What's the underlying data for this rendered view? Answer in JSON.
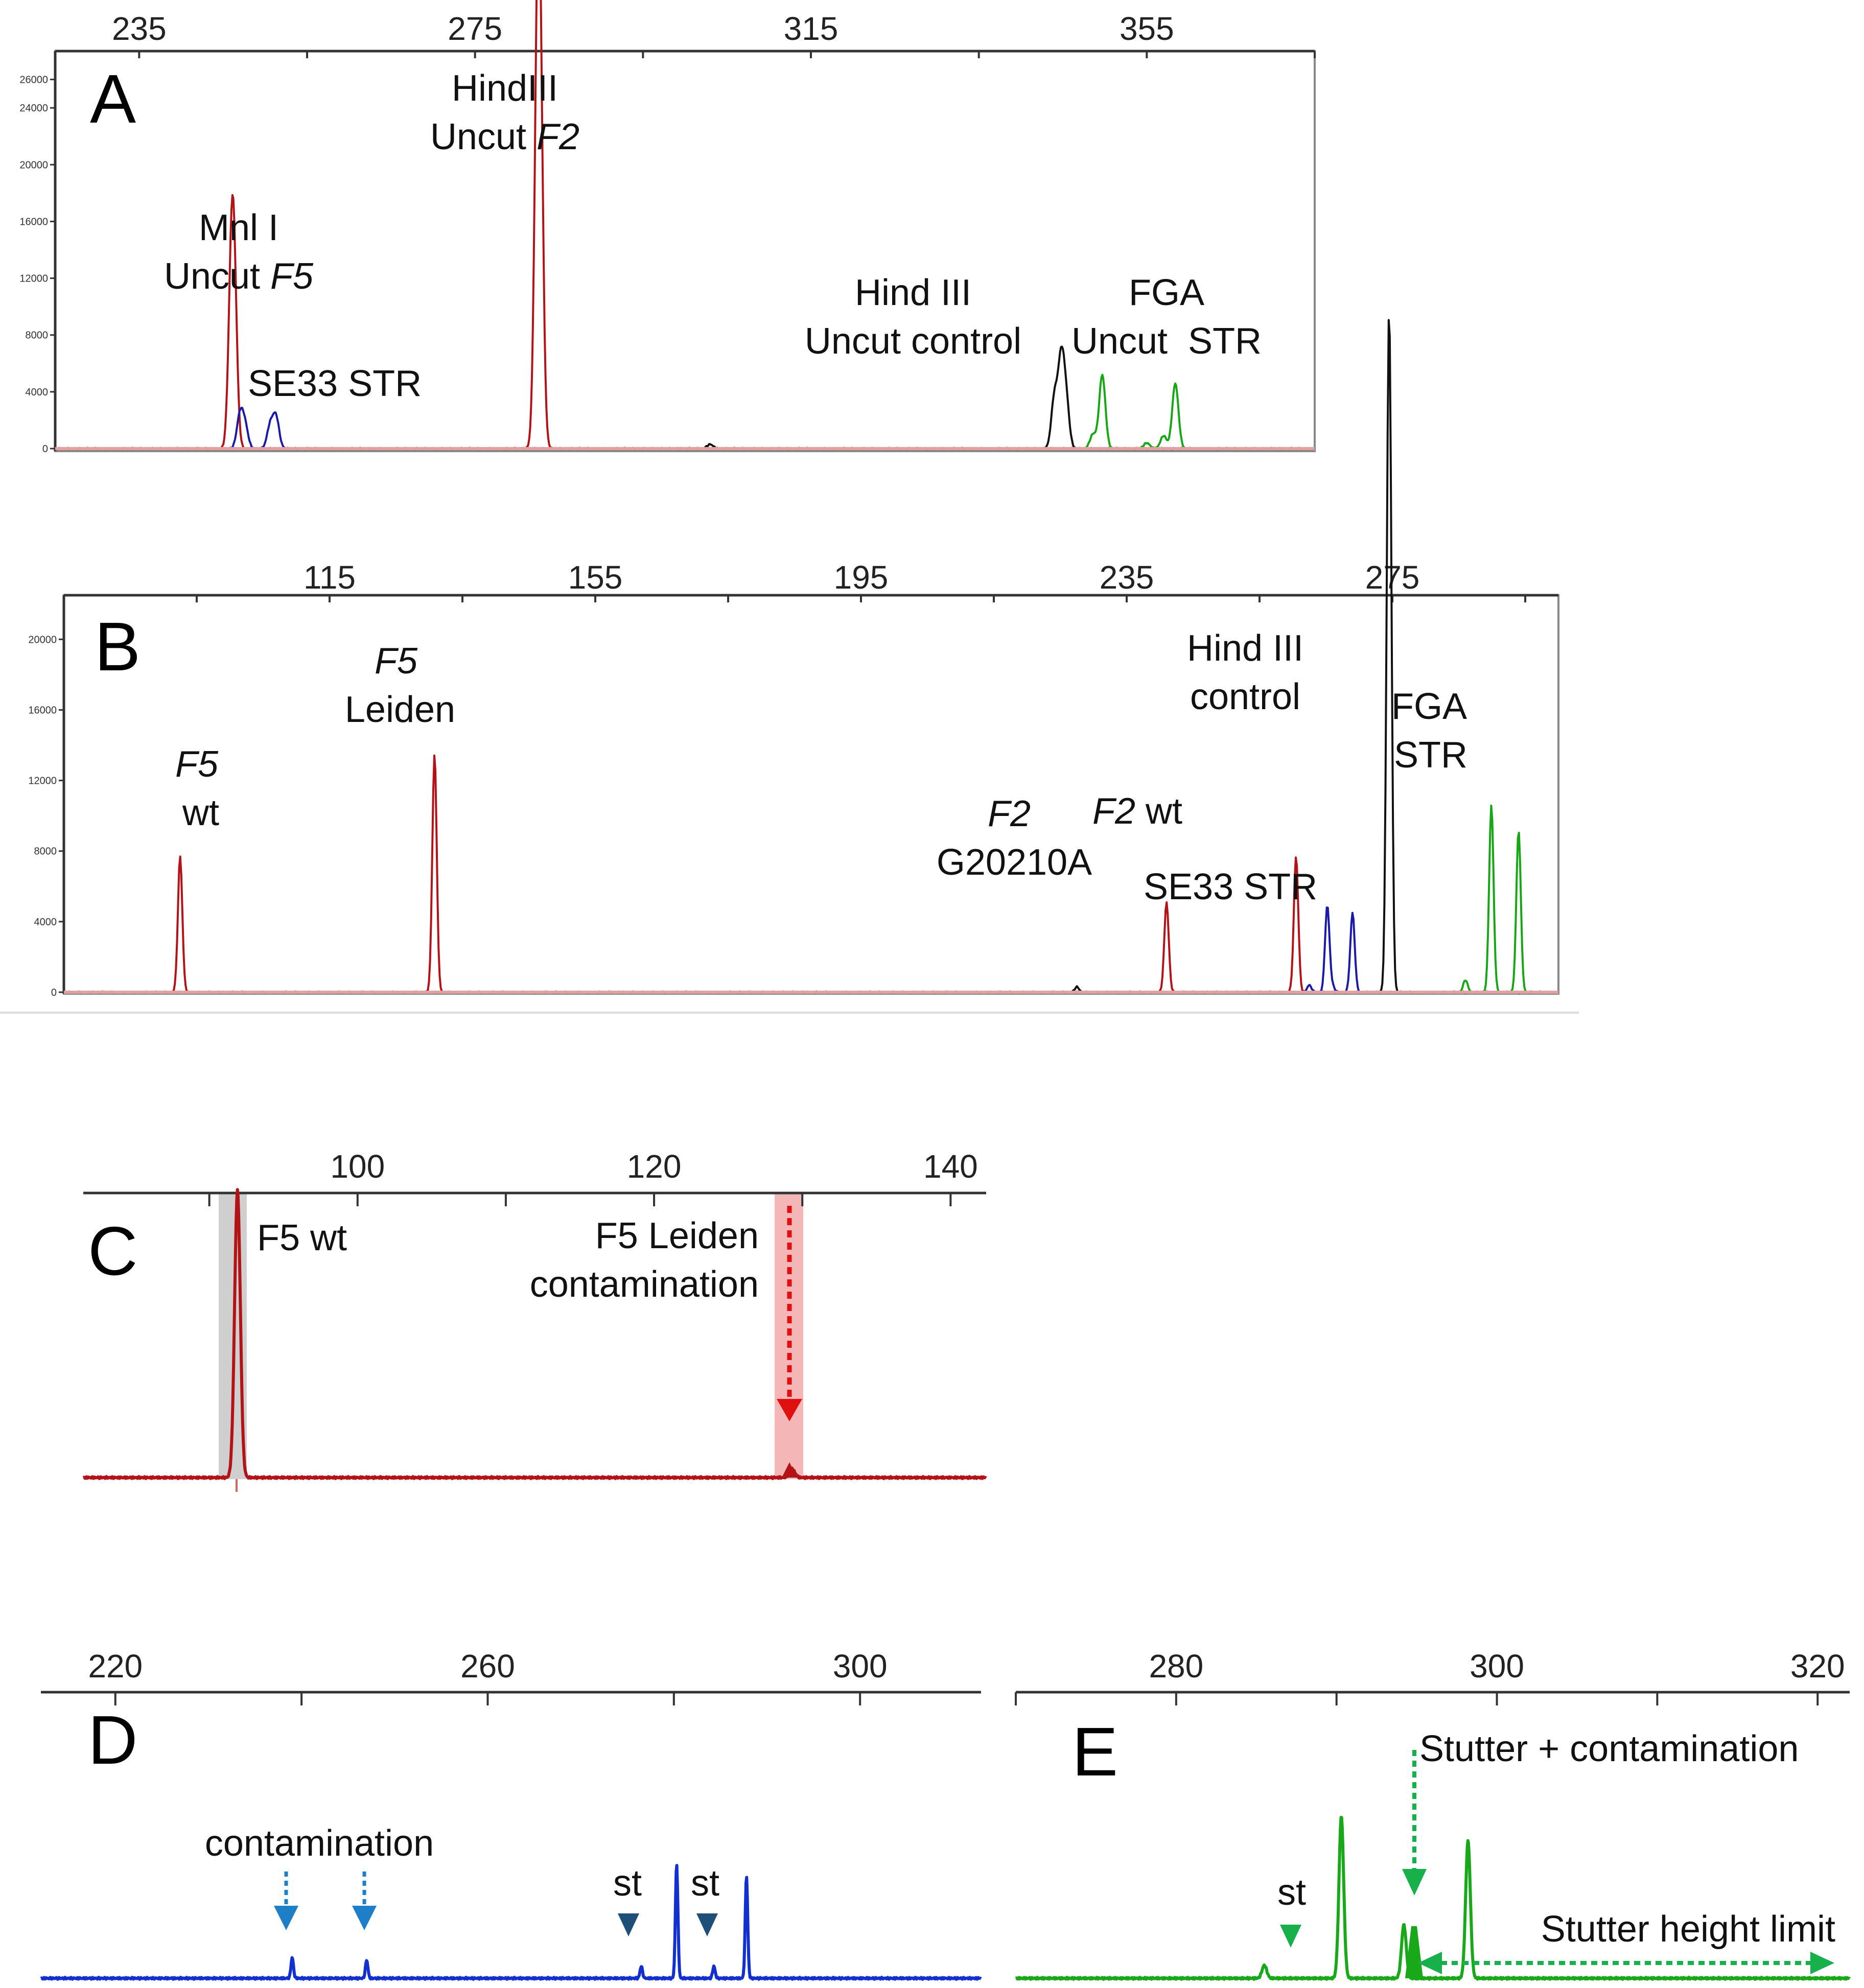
{
  "colors": {
    "red": "#b31217",
    "blue": "#1a1aa8",
    "black": "#111111",
    "green": "#16a616",
    "brightBlue": "#1230d0",
    "brightGreen": "#19a81a",
    "highlightRed": "#f4b6b6",
    "highlightGrey": "#cfcfcf",
    "arrowRed": "#e01010",
    "arrowBlue": "#1e7fc8",
    "arrowNavy": "#1d4f78",
    "arrowGreen": "#17b04a"
  },
  "chart_data": [
    {
      "panel": "A",
      "type": "line",
      "title": "",
      "xlabel": "",
      "ylabel": "",
      "x_ticks": [
        235,
        275,
        315,
        355
      ],
      "y_ticks": [
        0,
        4000,
        8000,
        12000,
        16000,
        20000,
        24000,
        26000
      ],
      "xlim": [
        225,
        375
      ],
      "ylim": [
        0,
        28000
      ],
      "series": [
        {
          "name": "red",
          "color": "red",
          "peaks": [
            [
              246,
              10500
            ],
            [
              246.3,
              9000
            ],
            [
              282.5,
              27500
            ],
            [
              282.8,
              13500
            ],
            [
              282.2,
              1500
            ]
          ]
        },
        {
          "name": "blue",
          "color": "blue",
          "peaks": [
            [
              247,
              2300
            ],
            [
              247.6,
              1600
            ],
            [
              250.6,
              1600
            ],
            [
              251.3,
              2200
            ]
          ]
        },
        {
          "name": "black",
          "color": "black",
          "peaks": [
            [
              344,
              3600
            ],
            [
              344.8,
              6000
            ],
            [
              345.4,
              3200
            ],
            [
              303,
              300
            ]
          ]
        },
        {
          "name": "green",
          "color": "green",
          "peaks": [
            [
              348.6,
              1000
            ],
            [
              349.7,
              5200
            ],
            [
              355,
              400
            ],
            [
              357,
              900
            ],
            [
              358.4,
              4600
            ]
          ]
        }
      ],
      "annotations": [
        {
          "lines": [
            "Mnl I",
            "Uncut F5"
          ],
          "italic_word": "F5"
        },
        {
          "lines": [
            "SE33 STR"
          ]
        },
        {
          "lines": [
            "HindIII",
            "Uncut F2"
          ],
          "italic_word": "F2"
        },
        {
          "lines": [
            "Hind III",
            "Uncut control"
          ]
        },
        {
          "lines": [
            "FGA",
            "Uncut  STR"
          ]
        }
      ]
    },
    {
      "panel": "B",
      "type": "line",
      "x_ticks": [
        115,
        155,
        195,
        235,
        275
      ],
      "y_ticks": [
        0,
        4000,
        8000,
        12000,
        16000,
        20000
      ],
      "xlim": [
        75,
        300
      ],
      "ylim": [
        0,
        22500
      ],
      "series": [
        {
          "name": "red",
          "color": "red",
          "peaks": [
            [
              92.5,
              7700
            ],
            [
              130.8,
              13500
            ],
            [
              241,
              5100
            ],
            [
              260.5,
              7700
            ]
          ]
        },
        {
          "name": "blue",
          "color": "blue",
          "peaks": [
            [
              265.2,
              4900
            ],
            [
              269,
              4500
            ],
            [
              266,
              300
            ],
            [
              262.5,
              400
            ]
          ]
        },
        {
          "name": "black",
          "color": "black",
          "peaks": [
            [
              274.6,
              21500
            ],
            [
              274.4,
              19000
            ],
            [
              227.5,
              300
            ]
          ]
        },
        {
          "name": "green",
          "color": "green",
          "peaks": [
            [
              289.9,
              10600
            ],
            [
              294,
              9200
            ],
            [
              286,
              700
            ]
          ]
        }
      ],
      "annotations": [
        {
          "lines": [
            "F5",
            "wt"
          ],
          "italic_word": "F5"
        },
        {
          "lines": [
            "F5",
            "Leiden"
          ],
          "italic_word": "F5"
        },
        {
          "lines": [
            "F2",
            "G20210A"
          ],
          "italic_word": "F2"
        },
        {
          "lines": [
            "F2 wt"
          ],
          "italic_word": "F2"
        },
        {
          "lines": [
            "SE33 STR"
          ]
        },
        {
          "lines": [
            "Hind III",
            "control"
          ]
        },
        {
          "lines": [
            "FGA",
            "STR"
          ]
        }
      ]
    },
    {
      "panel": "C",
      "type": "line",
      "x_ticks": [
        100,
        120,
        140
      ],
      "xlim": [
        81.5,
        142.4
      ],
      "series": [
        {
          "name": "red",
          "color": "red",
          "peaks": [
            [
              91.9,
              100
            ],
            [
              129.3,
              3
            ]
          ]
        }
      ],
      "annotations": [
        {
          "lines": [
            "F5 wt"
          ]
        },
        {
          "lines": [
            "F5 Leiden",
            "contamination"
          ]
        }
      ]
    },
    {
      "panel": "D",
      "type": "line",
      "x_ticks": [
        220,
        260,
        300
      ],
      "xlim": [
        212,
        313
      ],
      "series": [
        {
          "name": "blue",
          "color": "blue",
          "peaks": [
            [
              239,
              17
            ],
            [
              247,
              15
            ],
            [
              276.5,
              10
            ],
            [
              280.3,
              95
            ],
            [
              284.3,
              10
            ],
            [
              287.8,
              85
            ]
          ]
        }
      ],
      "annotations": [
        {
          "lines": [
            "contamination"
          ]
        },
        {
          "lines": [
            "st"
          ]
        },
        {
          "lines": [
            "st"
          ]
        }
      ]
    },
    {
      "panel": "E",
      "type": "line",
      "x_ticks": [
        280,
        300,
        320
      ],
      "xlim": [
        270,
        322
      ],
      "series": [
        {
          "name": "green",
          "color": "green",
          "peaks": [
            [
              285.5,
              8
            ],
            [
              290.3,
              100
            ],
            [
              294.2,
              33
            ],
            [
              298.2,
              85
            ]
          ]
        }
      ],
      "annotations": [
        {
          "lines": [
            "Stutter + contamination"
          ]
        },
        {
          "lines": [
            "st"
          ]
        },
        {
          "lines": [
            "Stutter height limit"
          ]
        }
      ]
    }
  ]
}
